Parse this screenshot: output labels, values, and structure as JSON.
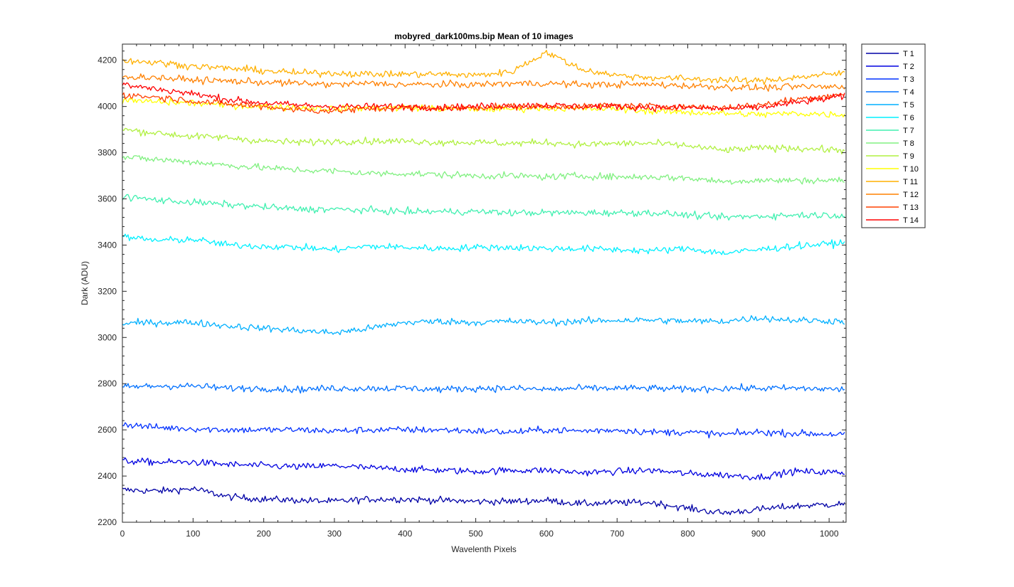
{
  "chart_data": {
    "type": "line",
    "title": "mobyred_dark100ms.bip  Mean of 10 images",
    "xlabel": "Wavelenth Pixels",
    "ylabel": "Dark (ADU)",
    "xlim": [
      0,
      1024
    ],
    "ylim": [
      2200,
      4270
    ],
    "xticks": [
      0,
      100,
      200,
      300,
      400,
      500,
      600,
      700,
      800,
      900,
      1000
    ],
    "yticks": [
      2200,
      2400,
      2600,
      2800,
      3000,
      3200,
      3400,
      3600,
      3800,
      4000,
      4200
    ],
    "grid": false,
    "legend_position": "outside-top-right",
    "x_sample": [
      0,
      50,
      100,
      150,
      200,
      250,
      300,
      350,
      400,
      450,
      500,
      550,
      600,
      650,
      700,
      750,
      800,
      850,
      900,
      950,
      1023
    ],
    "series": [
      {
        "name": "T 1",
        "color": "#0000a6",
        "values": [
          2340,
          2335,
          2345,
          2310,
          2300,
          2295,
          2290,
          2300,
          2300,
          2295,
          2290,
          2290,
          2295,
          2280,
          2285,
          2285,
          2260,
          2240,
          2255,
          2270,
          2280
        ]
      },
      {
        "name": "T 2",
        "color": "#0000e0",
        "values": [
          2465,
          2460,
          2460,
          2450,
          2445,
          2440,
          2445,
          2435,
          2430,
          2425,
          2420,
          2425,
          2425,
          2415,
          2420,
          2425,
          2410,
          2405,
          2395,
          2420,
          2415
        ]
      },
      {
        "name": "T 3",
        "color": "#0030ff",
        "values": [
          2625,
          2610,
          2605,
          2600,
          2600,
          2600,
          2595,
          2600,
          2600,
          2600,
          2595,
          2590,
          2600,
          2595,
          2600,
          2590,
          2590,
          2580,
          2590,
          2585,
          2580
        ]
      },
      {
        "name": "T 4",
        "color": "#0070ff",
        "values": [
          2785,
          2790,
          2790,
          2780,
          2780,
          2775,
          2780,
          2780,
          2780,
          2775,
          2780,
          2780,
          2775,
          2780,
          2780,
          2780,
          2775,
          2780,
          2780,
          2780,
          2775
        ]
      },
      {
        "name": "T 5",
        "color": "#00b0ff",
        "values": [
          3060,
          3065,
          3065,
          3050,
          3040,
          3030,
          3020,
          3040,
          3065,
          3070,
          3065,
          3070,
          3065,
          3070,
          3075,
          3075,
          3070,
          3070,
          3085,
          3075,
          3070
        ]
      },
      {
        "name": "T 6",
        "color": "#00f0ff",
        "values": [
          3435,
          3420,
          3425,
          3400,
          3395,
          3390,
          3380,
          3395,
          3390,
          3385,
          3390,
          3390,
          3385,
          3385,
          3380,
          3375,
          3385,
          3365,
          3380,
          3395,
          3410
        ]
      },
      {
        "name": "T 7",
        "color": "#40f0b0",
        "values": [
          3610,
          3595,
          3585,
          3575,
          3565,
          3555,
          3555,
          3550,
          3545,
          3545,
          3545,
          3540,
          3540,
          3540,
          3540,
          3540,
          3530,
          3520,
          3525,
          3530,
          3530
        ]
      },
      {
        "name": "T 8",
        "color": "#80f080",
        "values": [
          3780,
          3770,
          3760,
          3745,
          3735,
          3725,
          3720,
          3710,
          3710,
          3705,
          3700,
          3700,
          3695,
          3700,
          3695,
          3695,
          3690,
          3675,
          3680,
          3680,
          3680
        ]
      },
      {
        "name": "T 9",
        "color": "#b0f040",
        "values": [
          3900,
          3885,
          3870,
          3865,
          3850,
          3845,
          3850,
          3850,
          3850,
          3845,
          3845,
          3840,
          3845,
          3835,
          3840,
          3840,
          3830,
          3810,
          3820,
          3820,
          3810
        ]
      },
      {
        "name": "T 10",
        "color": "#ffff00",
        "values": [
          4025,
          4020,
          4015,
          4005,
          4000,
          3995,
          3990,
          3995,
          3995,
          3990,
          3990,
          3990,
          3995,
          3990,
          3990,
          3980,
          3975,
          3970,
          3965,
          3970,
          3965
        ]
      },
      {
        "name": "T 11",
        "color": "#ffb000",
        "values": [
          4200,
          4190,
          4175,
          4165,
          4155,
          4145,
          4145,
          4140,
          4140,
          4140,
          4135,
          4150,
          4235,
          4160,
          4135,
          4125,
          4120,
          4115,
          4110,
          4125,
          4145
        ]
      },
      {
        "name": "T 12",
        "color": "#ff8000",
        "values": [
          4130,
          4125,
          4115,
          4110,
          4105,
          4100,
          4095,
          4100,
          4095,
          4095,
          4095,
          4100,
          4100,
          4095,
          4095,
          4095,
          4090,
          4085,
          4080,
          4085,
          4085
        ]
      },
      {
        "name": "T 13",
        "color": "#ff4000",
        "values": [
          4050,
          4040,
          4025,
          4010,
          4000,
          3985,
          3980,
          3990,
          3995,
          3995,
          3995,
          4000,
          4000,
          4000,
          4005,
          4000,
          4000,
          3995,
          4005,
          4030,
          4055
        ]
      },
      {
        "name": "T 14",
        "color": "#ff0000",
        "values": [
          4095,
          4075,
          4055,
          4030,
          4015,
          4005,
          4000,
          4000,
          4000,
          3995,
          4000,
          4005,
          4005,
          4000,
          4000,
          3995,
          3995,
          3990,
          3995,
          4015,
          4045
        ]
      }
    ]
  }
}
